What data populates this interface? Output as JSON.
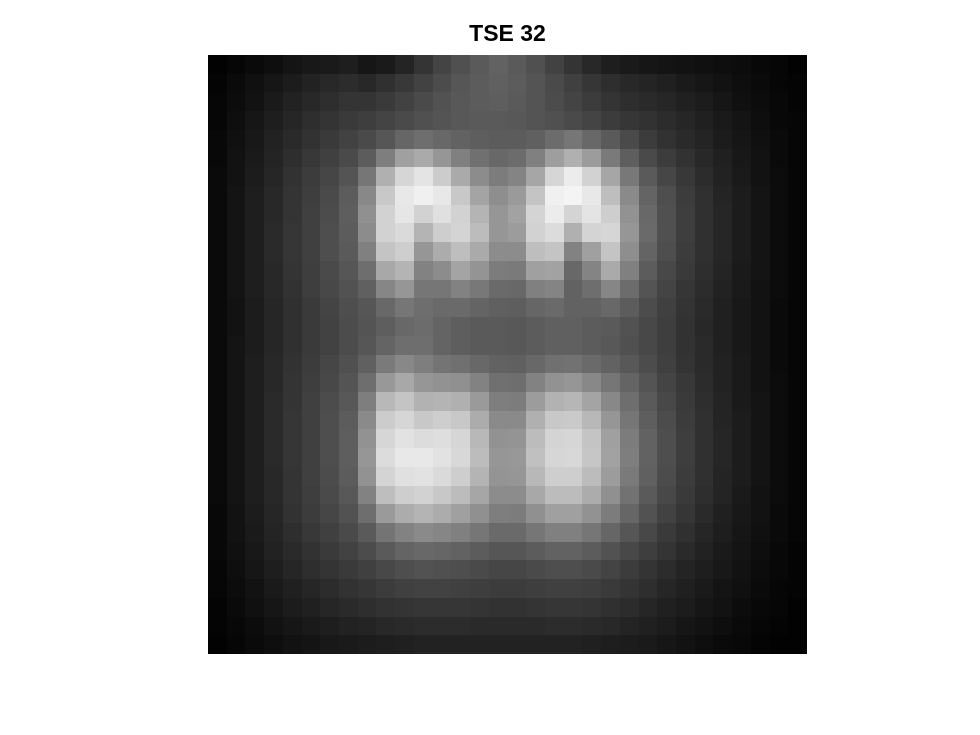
{
  "chart_data": {
    "type": "heatmap",
    "title": "TSE 32",
    "colormap": "gray",
    "rows": 32,
    "cols": 32,
    "xlabel": "",
    "ylabel": "",
    "grid": false,
    "values": [
      [
        2,
        6,
        10,
        14,
        20,
        24,
        26,
        30,
        22,
        26,
        36,
        52,
        68,
        80,
        90,
        98,
        90,
        80,
        66,
        52,
        40,
        30,
        26,
        22,
        20,
        18,
        16,
        14,
        12,
        8,
        6,
        2
      ],
      [
        4,
        10,
        16,
        22,
        28,
        34,
        40,
        44,
        40,
        48,
        56,
        66,
        76,
        86,
        92,
        96,
        92,
        84,
        74,
        64,
        54,
        46,
        40,
        36,
        32,
        26,
        22,
        18,
        14,
        10,
        6,
        4
      ],
      [
        6,
        12,
        18,
        26,
        34,
        40,
        46,
        52,
        52,
        58,
        66,
        74,
        82,
        88,
        92,
        94,
        90,
        84,
        76,
        68,
        60,
        52,
        46,
        42,
        38,
        32,
        28,
        22,
        16,
        12,
        8,
        4
      ],
      [
        6,
        14,
        22,
        30,
        38,
        46,
        52,
        58,
        62,
        68,
        74,
        80,
        84,
        88,
        90,
        90,
        88,
        84,
        80,
        74,
        68,
        60,
        54,
        50,
        44,
        38,
        32,
        26,
        20,
        14,
        8,
        6
      ],
      [
        8,
        16,
        24,
        34,
        42,
        50,
        58,
        66,
        74,
        86,
        102,
        110,
        104,
        98,
        94,
        92,
        92,
        96,
        108,
        118,
        104,
        90,
        74,
        60,
        50,
        42,
        36,
        28,
        22,
        16,
        10,
        6
      ],
      [
        8,
        18,
        26,
        36,
        46,
        56,
        64,
        74,
        92,
        126,
        160,
        170,
        150,
        128,
        112,
        104,
        108,
        128,
        158,
        176,
        156,
        122,
        94,
        74,
        60,
        50,
        40,
        32,
        24,
        18,
        10,
        6
      ],
      [
        10,
        18,
        28,
        38,
        50,
        60,
        70,
        84,
        118,
        176,
        214,
        228,
        204,
        170,
        140,
        124,
        132,
        166,
        214,
        236,
        210,
        166,
        120,
        90,
        70,
        56,
        44,
        34,
        26,
        18,
        12,
        6
      ],
      [
        10,
        20,
        30,
        40,
        52,
        62,
        74,
        92,
        136,
        200,
        232,
        240,
        232,
        200,
        164,
        142,
        154,
        196,
        240,
        244,
        232,
        190,
        138,
        100,
        78,
        60,
        48,
        36,
        28,
        20,
        12,
        6
      ],
      [
        10,
        20,
        30,
        40,
        52,
        64,
        76,
        94,
        144,
        210,
        230,
        210,
        224,
        210,
        180,
        150,
        162,
        212,
        236,
        212,
        228,
        206,
        146,
        104,
        80,
        62,
        48,
        38,
        28,
        20,
        12,
        6
      ],
      [
        10,
        20,
        30,
        42,
        54,
        64,
        78,
        92,
        140,
        210,
        218,
        180,
        206,
        212,
        188,
        150,
        156,
        210,
        220,
        176,
        212,
        214,
        150,
        106,
        80,
        62,
        48,
        38,
        28,
        20,
        12,
        6
      ],
      [
        10,
        20,
        30,
        42,
        54,
        64,
        78,
        90,
        128,
        196,
        206,
        150,
        172,
        190,
        170,
        140,
        140,
        190,
        196,
        130,
        160,
        196,
        142,
        100,
        78,
        60,
        48,
        38,
        28,
        20,
        12,
        6
      ],
      [
        10,
        20,
        30,
        40,
        52,
        62,
        74,
        86,
        110,
        168,
        180,
        130,
        140,
        164,
        148,
        124,
        122,
        160,
        162,
        104,
        132,
        170,
        128,
        92,
        72,
        58,
        46,
        36,
        26,
        20,
        12,
        6
      ],
      [
        10,
        20,
        30,
        40,
        50,
        62,
        72,
        82,
        96,
        134,
        150,
        118,
        118,
        130,
        120,
        106,
        104,
        128,
        132,
        98,
        110,
        134,
        108,
        84,
        68,
        54,
        44,
        34,
        26,
        18,
        12,
        6
      ],
      [
        10,
        18,
        28,
        38,
        48,
        58,
        68,
        78,
        86,
        104,
        118,
        110,
        106,
        106,
        100,
        96,
        94,
        102,
        106,
        98,
        98,
        104,
        92,
        76,
        64,
        52,
        42,
        32,
        24,
        18,
        10,
        6
      ],
      [
        10,
        18,
        28,
        38,
        48,
        58,
        66,
        76,
        84,
        94,
        104,
        108,
        100,
        94,
        90,
        90,
        88,
        92,
        96,
        96,
        92,
        90,
        82,
        72,
        62,
        50,
        40,
        32,
        24,
        18,
        10,
        6
      ],
      [
        10,
        20,
        28,
        38,
        48,
        58,
        66,
        76,
        86,
        100,
        110,
        110,
        100,
        94,
        90,
        90,
        88,
        92,
        96,
        96,
        92,
        88,
        80,
        72,
        62,
        50,
        42,
        32,
        24,
        18,
        10,
        6
      ],
      [
        10,
        20,
        30,
        40,
        50,
        60,
        70,
        80,
        96,
        122,
        136,
        126,
        116,
        112,
        104,
        98,
        96,
        104,
        112,
        114,
        106,
        98,
        88,
        76,
        64,
        52,
        42,
        34,
        26,
        18,
        10,
        6
      ],
      [
        10,
        20,
        30,
        40,
        52,
        62,
        72,
        84,
        110,
        152,
        168,
        150,
        146,
        144,
        130,
        112,
        110,
        130,
        146,
        150,
        136,
        118,
        100,
        84,
        68,
        56,
        44,
        34,
        26,
        18,
        12,
        6
      ],
      [
        10,
        20,
        30,
        42,
        52,
        64,
        76,
        88,
        126,
        184,
        196,
        178,
        180,
        176,
        154,
        126,
        124,
        156,
        178,
        182,
        164,
        136,
        110,
        90,
        72,
        58,
        46,
        36,
        26,
        20,
        12,
        6
      ],
      [
        10,
        20,
        30,
        42,
        54,
        64,
        78,
        92,
        138,
        204,
        214,
        200,
        206,
        200,
        172,
        138,
        138,
        176,
        200,
        202,
        184,
        150,
        118,
        94,
        76,
        60,
        48,
        36,
        28,
        20,
        12,
        6
      ],
      [
        10,
        20,
        30,
        42,
        54,
        64,
        78,
        94,
        146,
        214,
        226,
        220,
        222,
        214,
        184,
        146,
        148,
        188,
        212,
        214,
        196,
        160,
        124,
        98,
        78,
        62,
        48,
        38,
        28,
        20,
        12,
        6
      ],
      [
        10,
        20,
        30,
        42,
        54,
        64,
        78,
        94,
        150,
        220,
        232,
        232,
        226,
        216,
        188,
        150,
        152,
        192,
        214,
        216,
        198,
        162,
        126,
        98,
        78,
        62,
        48,
        38,
        28,
        20,
        12,
        6
      ],
      [
        10,
        20,
        30,
        40,
        52,
        64,
        76,
        92,
        146,
        212,
        224,
        226,
        218,
        206,
        180,
        148,
        150,
        184,
        206,
        206,
        188,
        156,
        122,
        96,
        76,
        60,
        48,
        36,
        28,
        20,
        12,
        6
      ],
      [
        10,
        20,
        30,
        40,
        52,
        62,
        74,
        88,
        130,
        190,
        206,
        210,
        200,
        188,
        166,
        140,
        140,
        168,
        188,
        188,
        172,
        144,
        114,
        90,
        72,
        58,
        46,
        36,
        26,
        18,
        12,
        6
      ],
      [
        8,
        18,
        28,
        38,
        50,
        60,
        70,
        82,
        110,
        154,
        172,
        180,
        172,
        160,
        144,
        126,
        124,
        144,
        160,
        160,
        146,
        124,
        102,
        82,
        66,
        54,
        42,
        32,
        24,
        18,
        10,
        6
      ],
      [
        8,
        18,
        26,
        36,
        46,
        56,
        64,
        74,
        90,
        116,
        130,
        138,
        134,
        128,
        118,
        106,
        106,
        118,
        128,
        128,
        118,
        102,
        86,
        72,
        58,
        48,
        38,
        30,
        22,
        16,
        10,
        6
      ],
      [
        8,
        16,
        24,
        34,
        42,
        50,
        58,
        66,
        76,
        90,
        100,
        104,
        102,
        98,
        92,
        86,
        86,
        92,
        98,
        98,
        92,
        82,
        72,
        62,
        52,
        42,
        34,
        26,
        20,
        14,
        8,
        4
      ],
      [
        6,
        14,
        22,
        30,
        38,
        46,
        52,
        58,
        64,
        72,
        78,
        82,
        80,
        78,
        74,
        70,
        70,
        74,
        78,
        78,
        74,
        68,
        60,
        52,
        44,
        36,
        30,
        24,
        18,
        12,
        8,
        4
      ],
      [
        6,
        12,
        18,
        26,
        32,
        38,
        44,
        50,
        54,
        60,
        64,
        66,
        66,
        64,
        62,
        60,
        60,
        62,
        64,
        64,
        62,
        58,
        52,
        46,
        38,
        32,
        26,
        20,
        16,
        10,
        6,
        4
      ],
      [
        4,
        10,
        16,
        22,
        28,
        32,
        38,
        42,
        46,
        50,
        52,
        54,
        54,
        54,
        52,
        50,
        50,
        52,
        54,
        54,
        52,
        48,
        44,
        38,
        32,
        28,
        22,
        18,
        12,
        8,
        6,
        2
      ],
      [
        4,
        8,
        12,
        18,
        22,
        26,
        30,
        34,
        36,
        40,
        42,
        44,
        44,
        44,
        42,
        42,
        42,
        42,
        44,
        44,
        42,
        40,
        36,
        32,
        28,
        22,
        18,
        14,
        10,
        6,
        4,
        2
      ],
      [
        2,
        6,
        10,
        14,
        18,
        20,
        24,
        26,
        28,
        30,
        32,
        34,
        34,
        34,
        34,
        34,
        34,
        34,
        34,
        34,
        32,
        30,
        28,
        26,
        22,
        18,
        14,
        10,
        8,
        4,
        2,
        2
      ]
    ]
  }
}
